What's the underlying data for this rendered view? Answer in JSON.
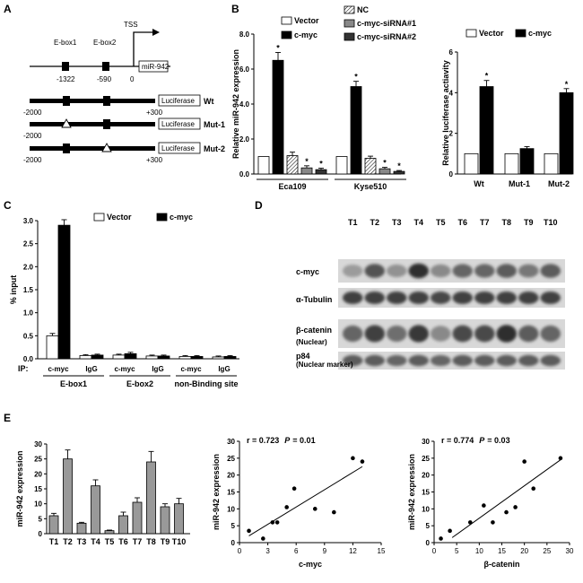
{
  "panels": {
    "A": "A",
    "B": "B",
    "C": "C",
    "D": "D",
    "E": "E"
  },
  "panelA": {
    "ebox1": "E-box1",
    "ebox2": "E-box2",
    "tss": "TSS",
    "gene": "miR-942",
    "pos_ebox1": "-1322",
    "pos_ebox2": "-590",
    "pos_zero": "0",
    "constructs": [
      {
        "left": "-2000",
        "right": "+300",
        "box": "Luciferase",
        "name": "Wt"
      },
      {
        "left": "-2000",
        "right": "",
        "box": "Luciferase",
        "name": "Mut-1"
      },
      {
        "left": "-2000",
        "right": "+300",
        "box": "Luciferase",
        "name": "Mut-2"
      }
    ]
  },
  "chart_data": [
    {
      "id": "B-left",
      "type": "bar",
      "ylabel": "Relative miR-942 expression",
      "ylim": [
        0,
        8
      ],
      "yticks": [
        0,
        2,
        4,
        6,
        8
      ],
      "ytick_labels": [
        "0.0",
        "2.0",
        "4.0",
        "6.0",
        "8.0"
      ],
      "groups": [
        "Eca109",
        "Kyse510"
      ],
      "series": [
        {
          "name": "Vector",
          "fill": "#ffffff",
          "values": [
            1.0,
            1.0
          ],
          "err": [
            0,
            0
          ],
          "sig": [
            "",
            ""
          ]
        },
        {
          "name": "c-myc",
          "fill": "#000000",
          "values": [
            6.5,
            5.0
          ],
          "err": [
            0.45,
            0.3
          ],
          "sig": [
            "*",
            "*"
          ]
        },
        {
          "name": "NC",
          "fill": "hatch",
          "values": [
            1.05,
            0.9
          ],
          "err": [
            0.2,
            0.12
          ],
          "sig": [
            "",
            ""
          ]
        },
        {
          "name": "c-myc-siRNA#1",
          "fill": "#888888",
          "values": [
            0.35,
            0.3
          ],
          "err": [
            0.12,
            0.08
          ],
          "sig": [
            "*",
            "*"
          ]
        },
        {
          "name": "c-myc-siRNA#2",
          "fill": "#333333",
          "values": [
            0.25,
            0.15
          ],
          "err": [
            0.08,
            0.05
          ],
          "sig": [
            "*",
            "*"
          ]
        }
      ]
    },
    {
      "id": "B-right",
      "type": "bar",
      "ylabel": "Relative luciferase actiavity",
      "ylim": [
        0,
        6
      ],
      "yticks": [
        0,
        2,
        4,
        6
      ],
      "ytick_labels": [
        "0",
        "2",
        "4",
        "6"
      ],
      "groups": [
        "Wt",
        "Mut-1",
        "Mut-2"
      ],
      "series": [
        {
          "name": "Vector",
          "fill": "#ffffff",
          "values": [
            1.0,
            1.0,
            1.0
          ],
          "err": [
            0,
            0,
            0
          ],
          "sig": [
            "",
            "",
            ""
          ]
        },
        {
          "name": "c-myc",
          "fill": "#000000",
          "values": [
            4.3,
            1.25,
            4.0
          ],
          "err": [
            0.3,
            0.1,
            0.2
          ],
          "sig": [
            "*",
            "",
            "*"
          ]
        }
      ]
    },
    {
      "id": "C",
      "type": "bar",
      "ylabel": "% input",
      "ylim": [
        0,
        3.0
      ],
      "yticks": [
        0,
        0.5,
        1.0,
        1.5,
        2.0,
        2.5,
        3.0
      ],
      "ytick_labels": [
        "0.0",
        "0.5",
        "1.0",
        "1.5",
        "2.0",
        "2.5",
        "3.0"
      ],
      "ip_label": "IP:",
      "categories": [
        "c-myc",
        "IgG",
        "c-myc",
        "IgG",
        "c-myc",
        "IgG"
      ],
      "sites": [
        "E-box1",
        "E-box2",
        "non-Binding site"
      ],
      "series": [
        {
          "name": "Vector",
          "fill": "#ffffff",
          "values": [
            0.5,
            0.07,
            0.08,
            0.06,
            0.05,
            0.04
          ],
          "err": [
            0.05,
            0.02,
            0.02,
            0.02,
            0.02,
            0.02
          ]
        },
        {
          "name": "c-myc",
          "fill": "#000000",
          "values": [
            2.9,
            0.08,
            0.11,
            0.06,
            0.05,
            0.05
          ],
          "err": [
            0.12,
            0.02,
            0.03,
            0.02,
            0.02,
            0.02
          ]
        }
      ]
    },
    {
      "id": "E-left",
      "type": "bar",
      "ylabel": "miR-942 expression",
      "ylim": [
        0,
        30
      ],
      "yticks": [
        0,
        5,
        10,
        15,
        20,
        25,
        30
      ],
      "categories": [
        "T1",
        "T2",
        "T3",
        "T4",
        "T5",
        "T6",
        "T7",
        "T8",
        "T9",
        "T10"
      ],
      "values": [
        6,
        25,
        3.5,
        16,
        1,
        6,
        10.5,
        24,
        9,
        10
      ],
      "err": [
        0.8,
        3,
        0.3,
        2,
        0.2,
        1.2,
        1.5,
        3.5,
        1,
        1.8
      ]
    },
    {
      "id": "E-mid",
      "type": "scatter",
      "xlabel": "c-myc",
      "ylabel": "miR-942 expression",
      "xlim": [
        0,
        15
      ],
      "ylim": [
        0,
        30
      ],
      "xticks": [
        0,
        3,
        6,
        9,
        12,
        15
      ],
      "yticks": [
        0,
        5,
        10,
        15,
        20,
        25,
        30
      ],
      "stat_r": "r = 0.723",
      "stat_p_label": "P",
      "stat_p_value": "= 0.01",
      "x": [
        1,
        2.5,
        3.5,
        4,
        5,
        5.8,
        8,
        10,
        12,
        13
      ],
      "y": [
        3.5,
        1.2,
        6,
        6,
        10.5,
        16,
        10,
        9,
        25,
        24
      ],
      "fit": [
        [
          1,
          2
        ],
        [
          13,
          22.5
        ]
      ]
    },
    {
      "id": "E-right",
      "type": "scatter",
      "xlabel": "β-catenin",
      "ylabel": "miR-942 expression",
      "xlim": [
        0,
        30
      ],
      "ylim": [
        0,
        30
      ],
      "xticks": [
        0,
        5,
        10,
        15,
        20,
        25,
        30
      ],
      "yticks": [
        0,
        5,
        10,
        15,
        20,
        25,
        30
      ],
      "stat_r": "r = 0.774",
      "stat_p_label": "P",
      "stat_p_value": "= 0.03",
      "x": [
        1.5,
        3.5,
        8,
        11,
        13,
        16,
        18,
        20,
        22,
        28
      ],
      "y": [
        1.2,
        3.5,
        6,
        11,
        6,
        9,
        10.5,
        24,
        16,
        25
      ],
      "fit": [
        [
          4,
          1.5
        ],
        [
          28,
          24.5
        ]
      ]
    }
  ],
  "panelD": {
    "lanes": [
      "T1",
      "T2",
      "T3",
      "T4",
      "T5",
      "T6",
      "T7",
      "T8",
      "T9",
      "T10"
    ],
    "blots": [
      {
        "label": "c-myc",
        "sub": "",
        "intensity": [
          0.25,
          0.65,
          0.3,
          0.85,
          0.35,
          0.55,
          0.55,
          0.6,
          0.45,
          0.6
        ]
      },
      {
        "label": "α-Tubulin",
        "sub": "",
        "intensity": [
          0.75,
          0.75,
          0.75,
          0.75,
          0.72,
          0.75,
          0.75,
          0.75,
          0.75,
          0.75
        ]
      },
      {
        "label": "β-catenin",
        "sub": "(Nuclear)",
        "intensity": [
          0.55,
          0.75,
          0.5,
          0.8,
          0.35,
          0.7,
          0.7,
          0.85,
          0.6,
          0.55
        ]
      },
      {
        "label": "p84",
        "sub": "(Nuclear marker)",
        "intensity": [
          0.6,
          0.6,
          0.55,
          0.6,
          0.55,
          0.6,
          0.6,
          0.6,
          0.6,
          0.6
        ]
      }
    ]
  }
}
